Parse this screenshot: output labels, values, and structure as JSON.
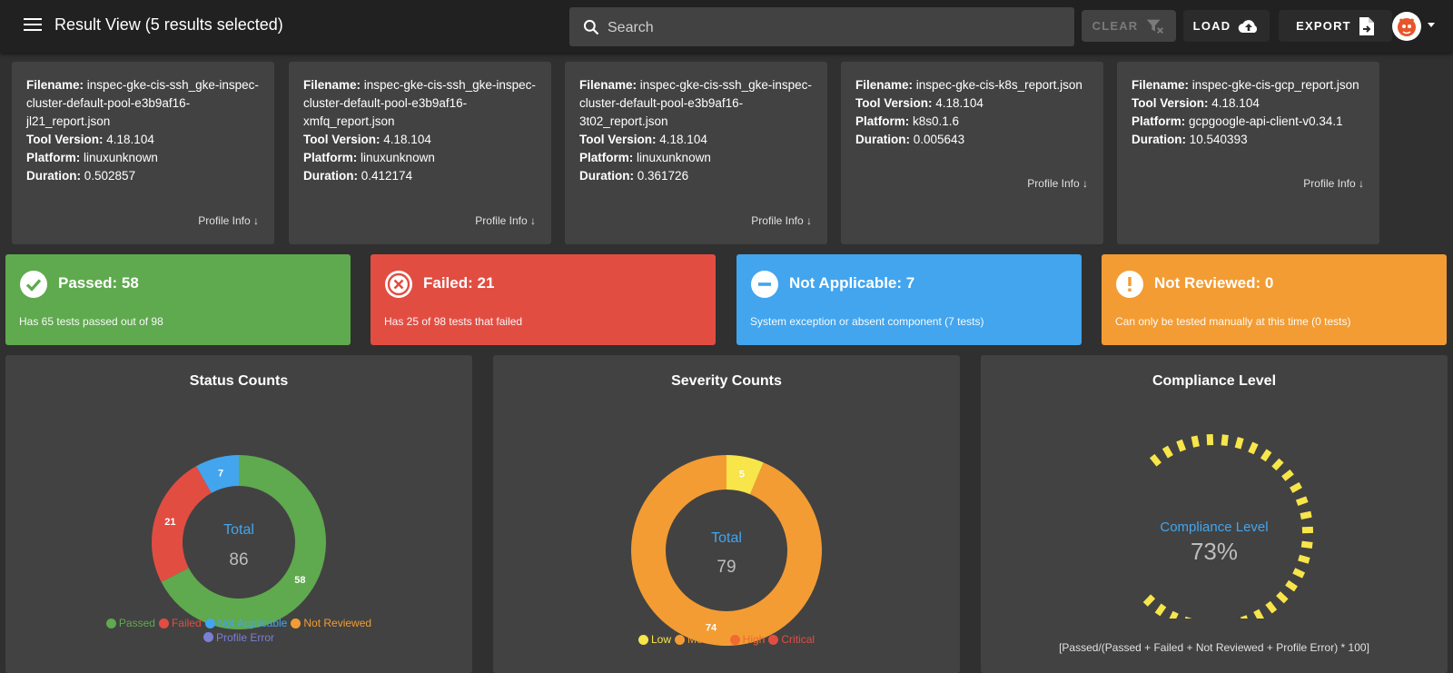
{
  "header": {
    "title": "Result View (5 results selected)",
    "search_placeholder": "Search",
    "clear_label": "CLEAR",
    "load_label": "LOAD",
    "export_label": "EXPORT"
  },
  "labels": {
    "filename": "Filename:",
    "tool_version": "Tool Version:",
    "platform": "Platform:",
    "duration": "Duration:",
    "profile_info": "Profile Info ↓"
  },
  "files": [
    {
      "filename": "inspec-gke-cis-ssh_gke-inspec-cluster-default-pool-e3b9af16-jl21_report.json",
      "tool_version": "4.18.104",
      "platform": "linuxunknown",
      "duration": "0.502857"
    },
    {
      "filename": "inspec-gke-cis-ssh_gke-inspec-cluster-default-pool-e3b9af16-xmfq_report.json",
      "tool_version": "4.18.104",
      "platform": "linuxunknown",
      "duration": "0.412174"
    },
    {
      "filename": "inspec-gke-cis-ssh_gke-inspec-cluster-default-pool-e3b9af16-3t02_report.json",
      "tool_version": "4.18.104",
      "platform": "linuxunknown",
      "duration": "0.361726"
    },
    {
      "filename": "inspec-gke-cis-k8s_report.json",
      "tool_version": "4.18.104",
      "platform": "k8s0.1.6",
      "duration": "0.005643"
    },
    {
      "filename": "inspec-gke-cis-gcp_report.json",
      "tool_version": "4.18.104",
      "platform": "gcpgoogle-api-client-v0.34.1",
      "duration": "10.540393"
    }
  ],
  "status_cards": [
    {
      "title": "Passed: 58",
      "desc": "Has 65 tests passed out of 98",
      "color": "#5fa94e",
      "icon": "check-circle-icon"
    },
    {
      "title": "Failed: 21",
      "desc": "Has 25 of 98 tests that failed",
      "color": "#e24d42",
      "icon": "x-circle-icon"
    },
    {
      "title": "Not Applicable: 7",
      "desc": "System exception or absent component (7 tests)",
      "color": "#42a5ee",
      "icon": "minus-circle-icon"
    },
    {
      "title": "Not Reviewed: 0",
      "desc": "Can only be tested manually at this time (0 tests)",
      "color": "#f39c33",
      "icon": "exclamation-circle-icon"
    }
  ],
  "status_chart": {
    "title": "Status Counts",
    "center_label": "Total",
    "center_value": "86",
    "legend": [
      {
        "name": "Passed",
        "color": "#5fa94e"
      },
      {
        "name": "Failed",
        "color": "#e24d42"
      },
      {
        "name": "Not Applicable",
        "color": "#42a5ee"
      },
      {
        "name": "Not Reviewed",
        "color": "#f39c33"
      },
      {
        "name": "Profile Error",
        "color": "#7b7fd6"
      }
    ]
  },
  "severity_chart": {
    "title": "Severity Counts",
    "center_label": "Total",
    "center_value": "79",
    "legend": [
      {
        "name": "Low",
        "color": "#f7e54a"
      },
      {
        "name": "Medium",
        "color": "#f39c33"
      },
      {
        "name": "High",
        "color": "#f06a32"
      },
      {
        "name": "Critical",
        "color": "#e24d42"
      }
    ]
  },
  "compliance": {
    "title": "Compliance Level",
    "center_label": "Compliance Level",
    "value": "73%",
    "level": 73,
    "formula": "[Passed/(Passed + Failed + Not Reviewed + Profile Error) * 100]",
    "color": "#f7e54a"
  },
  "chart_data": [
    {
      "type": "pie",
      "title": "Status Counts",
      "categories": [
        "Passed",
        "Failed",
        "Not Applicable",
        "Not Reviewed",
        "Profile Error"
      ],
      "values": [
        58,
        21,
        7,
        0,
        0
      ],
      "colors": [
        "#5fa94e",
        "#e24d42",
        "#42a5ee",
        "#f39c33",
        "#7b7fd6"
      ]
    },
    {
      "type": "pie",
      "title": "Severity Counts",
      "categories": [
        "Low",
        "Medium",
        "High",
        "Critical"
      ],
      "values": [
        5,
        74,
        0,
        0
      ],
      "colors": [
        "#f7e54a",
        "#f39c33",
        "#f06a32",
        "#e24d42"
      ]
    }
  ]
}
